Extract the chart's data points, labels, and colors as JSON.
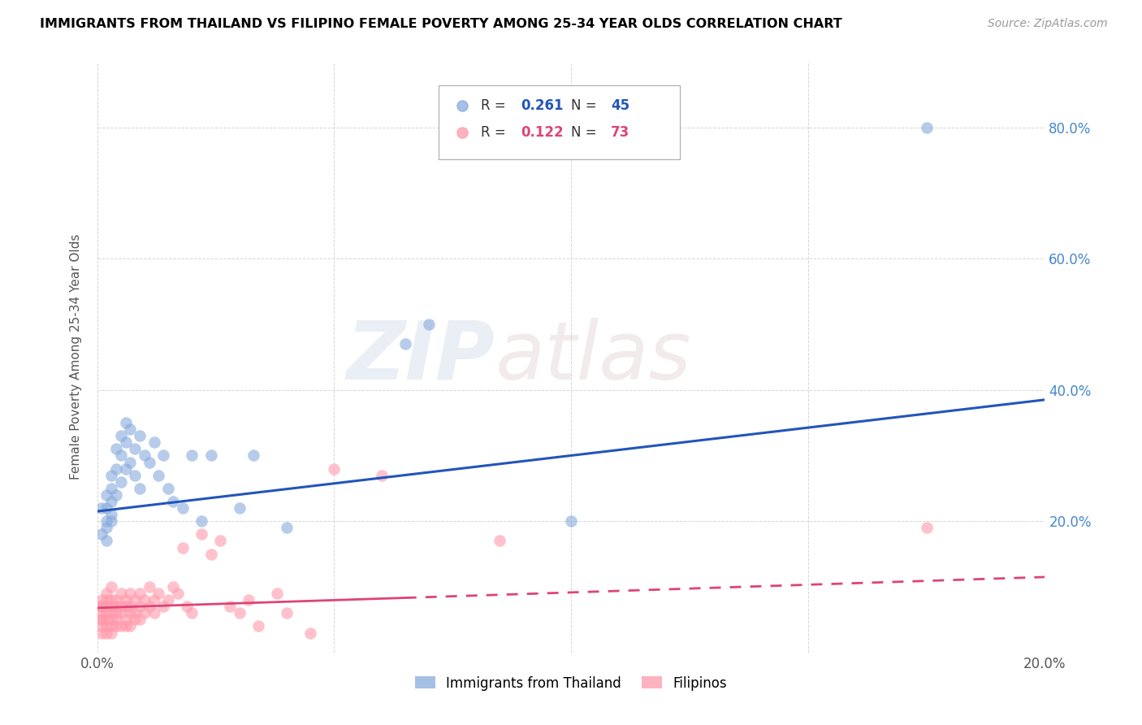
{
  "title": "IMMIGRANTS FROM THAILAND VS FILIPINO FEMALE POVERTY AMONG 25-34 YEAR OLDS CORRELATION CHART",
  "source": "Source: ZipAtlas.com",
  "ylabel": "Female Poverty Among 25-34 Year Olds",
  "xlim": [
    0.0,
    0.2
  ],
  "ylim": [
    0.0,
    0.9
  ],
  "blue_color": "#88AADD",
  "pink_color": "#FF99AA",
  "blue_line_color": "#2255BB",
  "pink_line_color": "#DD4477",
  "r_blue": 0.261,
  "n_blue": 45,
  "r_pink": 0.122,
  "n_pink": 73,
  "watermark_zip": "ZIP",
  "watermark_atlas": "atlas",
  "legend_label_blue": "Immigrants from Thailand",
  "legend_label_pink": "Filipinos",
  "blue_line_x0": 0.0,
  "blue_line_y0": 0.215,
  "blue_line_x1": 0.2,
  "blue_line_y1": 0.385,
  "pink_line_x0": 0.0,
  "pink_line_y0": 0.068,
  "pink_line_x1": 0.2,
  "pink_line_y1": 0.115,
  "blue_scatter_x": [
    0.001,
    0.001,
    0.002,
    0.002,
    0.002,
    0.002,
    0.002,
    0.003,
    0.003,
    0.003,
    0.003,
    0.003,
    0.004,
    0.004,
    0.004,
    0.005,
    0.005,
    0.005,
    0.006,
    0.006,
    0.006,
    0.007,
    0.007,
    0.008,
    0.008,
    0.009,
    0.009,
    0.01,
    0.011,
    0.012,
    0.013,
    0.014,
    0.015,
    0.016,
    0.018,
    0.02,
    0.022,
    0.024,
    0.03,
    0.033,
    0.04,
    0.065,
    0.07,
    0.1,
    0.175
  ],
  "blue_scatter_y": [
    0.22,
    0.18,
    0.24,
    0.2,
    0.17,
    0.22,
    0.19,
    0.25,
    0.23,
    0.2,
    0.27,
    0.21,
    0.31,
    0.28,
    0.24,
    0.33,
    0.3,
    0.26,
    0.35,
    0.32,
    0.28,
    0.29,
    0.34,
    0.31,
    0.27,
    0.33,
    0.25,
    0.3,
    0.29,
    0.32,
    0.27,
    0.3,
    0.25,
    0.23,
    0.22,
    0.3,
    0.2,
    0.3,
    0.22,
    0.3,
    0.19,
    0.47,
    0.5,
    0.2,
    0.8
  ],
  "pink_scatter_x": [
    0.001,
    0.001,
    0.001,
    0.001,
    0.001,
    0.001,
    0.001,
    0.001,
    0.002,
    0.002,
    0.002,
    0.002,
    0.002,
    0.002,
    0.002,
    0.003,
    0.003,
    0.003,
    0.003,
    0.003,
    0.003,
    0.003,
    0.004,
    0.004,
    0.004,
    0.004,
    0.004,
    0.005,
    0.005,
    0.005,
    0.005,
    0.006,
    0.006,
    0.006,
    0.006,
    0.007,
    0.007,
    0.007,
    0.007,
    0.008,
    0.008,
    0.008,
    0.009,
    0.009,
    0.009,
    0.01,
    0.01,
    0.011,
    0.011,
    0.012,
    0.012,
    0.013,
    0.014,
    0.015,
    0.016,
    0.017,
    0.018,
    0.019,
    0.02,
    0.022,
    0.024,
    0.026,
    0.028,
    0.03,
    0.032,
    0.034,
    0.038,
    0.04,
    0.045,
    0.05,
    0.06,
    0.085,
    0.175
  ],
  "pink_scatter_y": [
    0.05,
    0.06,
    0.07,
    0.04,
    0.08,
    0.05,
    0.03,
    0.07,
    0.06,
    0.04,
    0.08,
    0.05,
    0.07,
    0.03,
    0.09,
    0.05,
    0.06,
    0.04,
    0.07,
    0.08,
    0.03,
    0.1,
    0.05,
    0.06,
    0.07,
    0.04,
    0.08,
    0.06,
    0.04,
    0.07,
    0.09,
    0.05,
    0.07,
    0.04,
    0.08,
    0.06,
    0.04,
    0.09,
    0.07,
    0.05,
    0.08,
    0.06,
    0.07,
    0.05,
    0.09,
    0.06,
    0.08,
    0.07,
    0.1,
    0.08,
    0.06,
    0.09,
    0.07,
    0.08,
    0.1,
    0.09,
    0.16,
    0.07,
    0.06,
    0.18,
    0.15,
    0.17,
    0.07,
    0.06,
    0.08,
    0.04,
    0.09,
    0.06,
    0.03,
    0.28,
    0.27,
    0.17,
    0.19
  ]
}
